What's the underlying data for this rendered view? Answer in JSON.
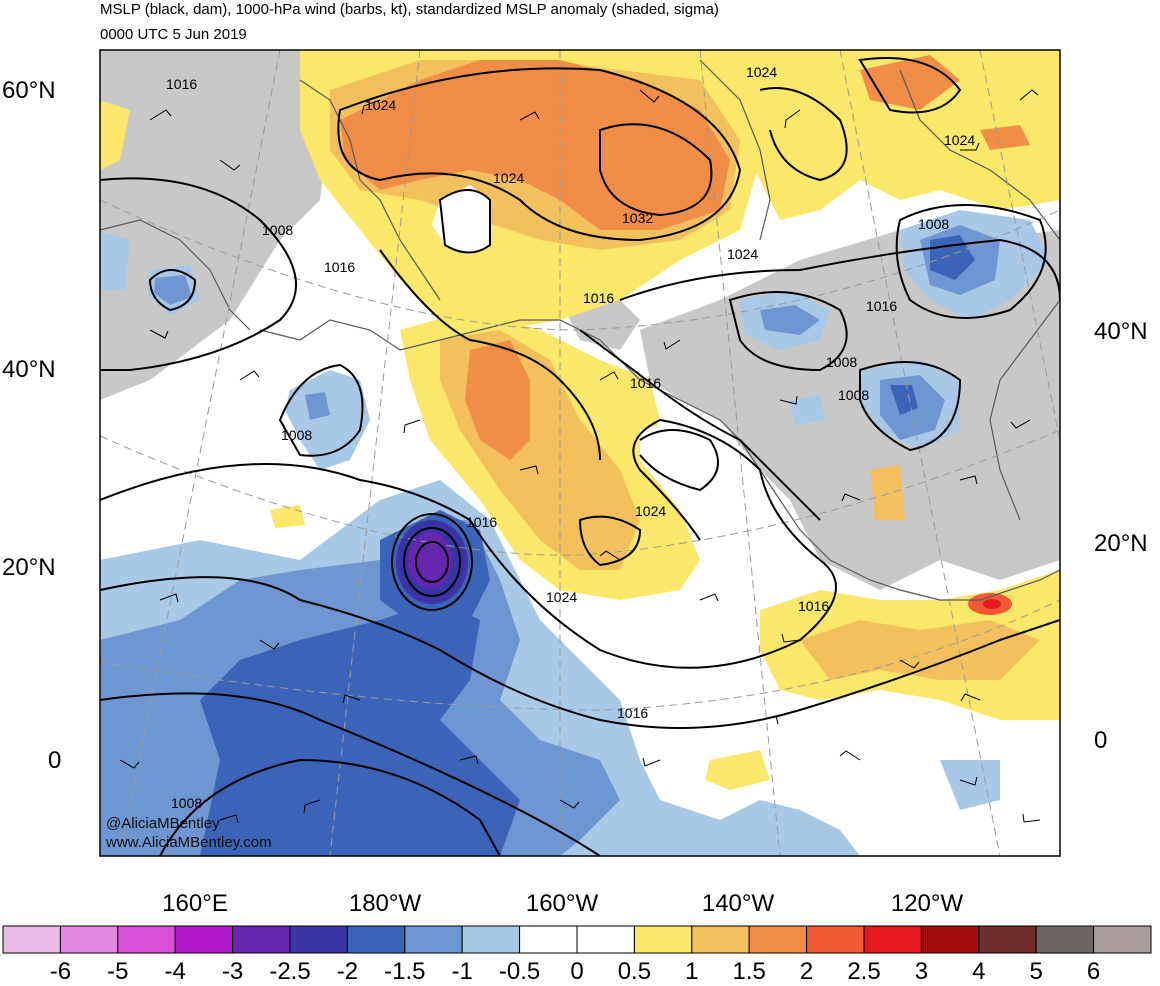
{
  "header": {
    "title": "MSLP (black, dam), 1000-hPa wind (barbs, kt), standardized MSLP anomaly (shaded, sigma)",
    "subtitle": "0000 UTC 5 Jun 2019"
  },
  "lat_labels_left": [
    "60°N",
    "40°N",
    "20°N",
    "0"
  ],
  "lat_labels_right": [
    "40°N",
    "20°N",
    "0"
  ],
  "lon_labels": [
    "160°E",
    "180°W",
    "160°W",
    "140°W",
    "120°W"
  ],
  "isobar_labels": [
    "1016",
    "1024",
    "1008",
    "1016",
    "1024",
    "1032",
    "1024",
    "1024",
    "1024",
    "1008",
    "1016",
    "1016",
    "1008",
    "1008",
    "1016",
    "1008",
    "1016",
    "1024",
    "1024",
    "1016",
    "1016",
    "1008"
  ],
  "credits": [
    "@AliciaMBentley",
    "www.AliciaMBentley.com"
  ],
  "colorbar": {
    "labels": [
      "-6",
      "-5",
      "-4",
      "-3",
      "-2.5",
      "-2",
      "-1.5",
      "-1",
      "-0.5",
      "0",
      "0.5",
      "1",
      "1.5",
      "2",
      "2.5",
      "3",
      "4",
      "5",
      "6"
    ],
    "colors": [
      "#ebbce8",
      "#e486e4",
      "#d84fd8",
      "#b118c8",
      "#6626b0",
      "#3a34a4",
      "#3a64b8",
      "#6e96d2",
      "#a8c8e6",
      "#ffffff",
      "#ffffff",
      "#fbe76a",
      "#f4c05e",
      "#f08e48",
      "#f15a35",
      "#e41a1c",
      "#a10c0c",
      "#6e2c2c",
      "#6e6464",
      "#a79b9b"
    ]
  },
  "colors": {
    "land_gray": "#c8c8c8",
    "coast": "#595959",
    "grid": "#9a9a9a"
  }
}
